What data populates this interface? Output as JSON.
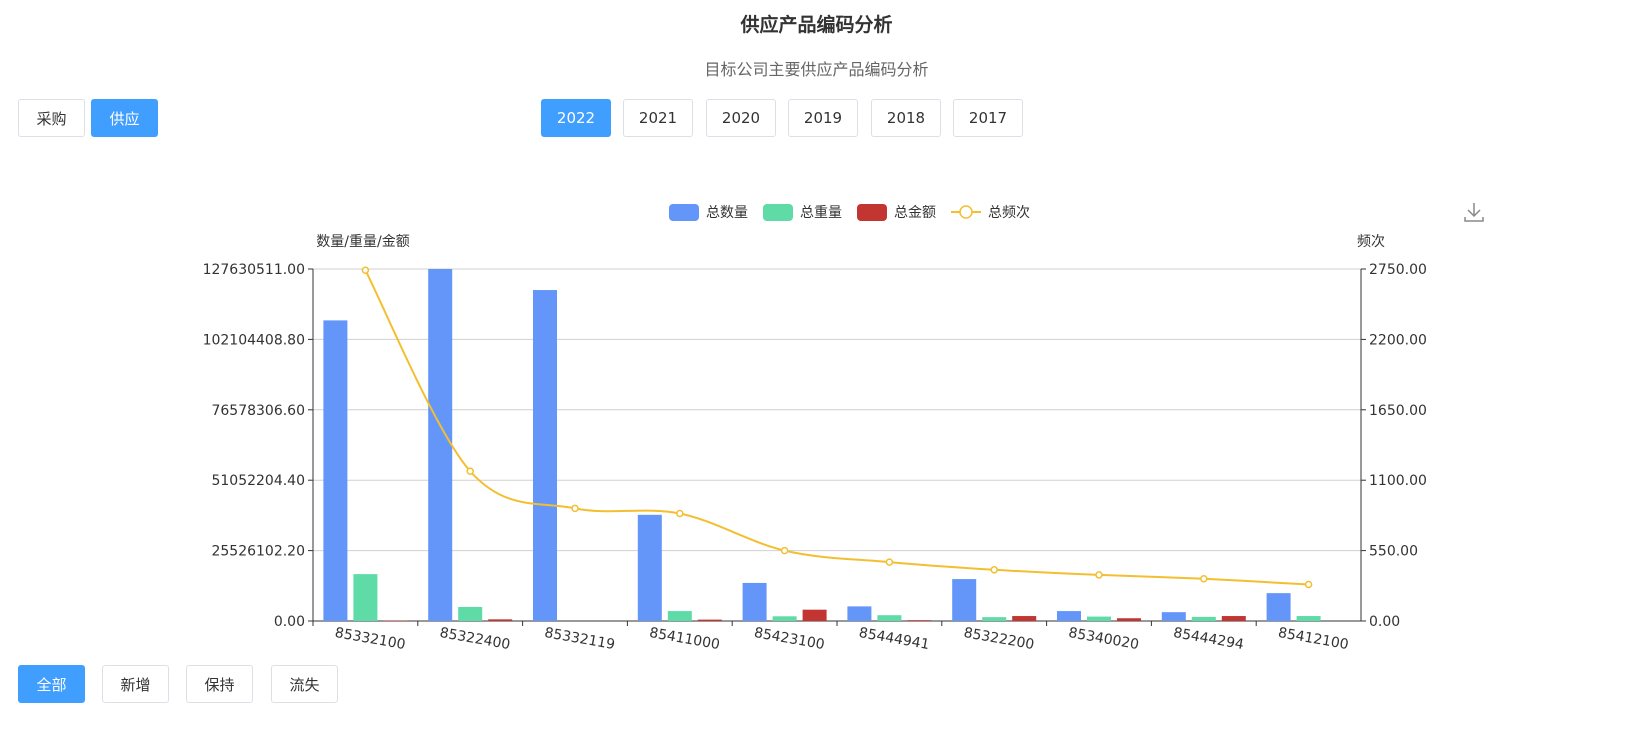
{
  "header": {
    "title": "供应产品编码分析",
    "subtitle": "目标公司主要供应产品编码分析"
  },
  "mode_buttons": [
    {
      "label": "采购",
      "active": false
    },
    {
      "label": "供应",
      "active": true
    }
  ],
  "year_buttons": [
    {
      "label": "2022",
      "active": true
    },
    {
      "label": "2021",
      "active": false
    },
    {
      "label": "2020",
      "active": false
    },
    {
      "label": "2019",
      "active": false
    },
    {
      "label": "2018",
      "active": false
    },
    {
      "label": "2017",
      "active": false
    }
  ],
  "filter_buttons": [
    {
      "label": "全部",
      "active": true
    },
    {
      "label": "新增",
      "active": false
    },
    {
      "label": "保持",
      "active": false
    },
    {
      "label": "流失",
      "active": false
    }
  ],
  "toolbox": {
    "icon": "download-icon"
  },
  "colors": {
    "accent": "#409eff",
    "quantity": "#6495f9",
    "weight": "#5fdba7",
    "amount": "#c23531",
    "frequency": "#f3bf30"
  },
  "chart_data": {
    "type": "bar",
    "categories": [
      "85332100",
      "85322400",
      "85332119",
      "85411000",
      "85423100",
      "85444941",
      "85322200",
      "85340020",
      "85444294",
      "85412100"
    ],
    "series": [
      {
        "name": "总数量",
        "type": "bar",
        "axis": "left",
        "values": [
          109000000,
          127630511,
          120000000,
          38500000,
          13800000,
          5300000,
          15200000,
          3600000,
          3200000,
          10100000
        ]
      },
      {
        "name": "总重量",
        "type": "bar",
        "axis": "left",
        "values": [
          17000000,
          5100000,
          0,
          3600000,
          1700000,
          2100000,
          1400000,
          1600000,
          1500000,
          1800000
        ]
      },
      {
        "name": "总金额",
        "type": "bar",
        "axis": "left",
        "values": [
          200000,
          600000,
          0,
          500000,
          4100000,
          300000,
          1800000,
          1000000,
          1800000,
          0
        ]
      },
      {
        "name": "总频次",
        "type": "line",
        "axis": "right",
        "values": [
          2740,
          1170,
          880,
          840,
          550,
          460,
          400,
          360,
          330,
          285
        ]
      }
    ],
    "ylabel_left": "数量/重量/金额",
    "ylabel_right": "频次",
    "ylim_left": [
      0,
      127630511
    ],
    "ylim_right": [
      0,
      2750
    ],
    "yticks_left": [
      "0.00",
      "25526102.20",
      "51052204.40",
      "76578306.60",
      "102104408.80",
      "127630511.00"
    ],
    "yticks_right": [
      "0.00",
      "550.00",
      "1100.00",
      "1650.00",
      "2200.00",
      "2750.00"
    ],
    "legend_position": "top-center",
    "grid": true
  }
}
